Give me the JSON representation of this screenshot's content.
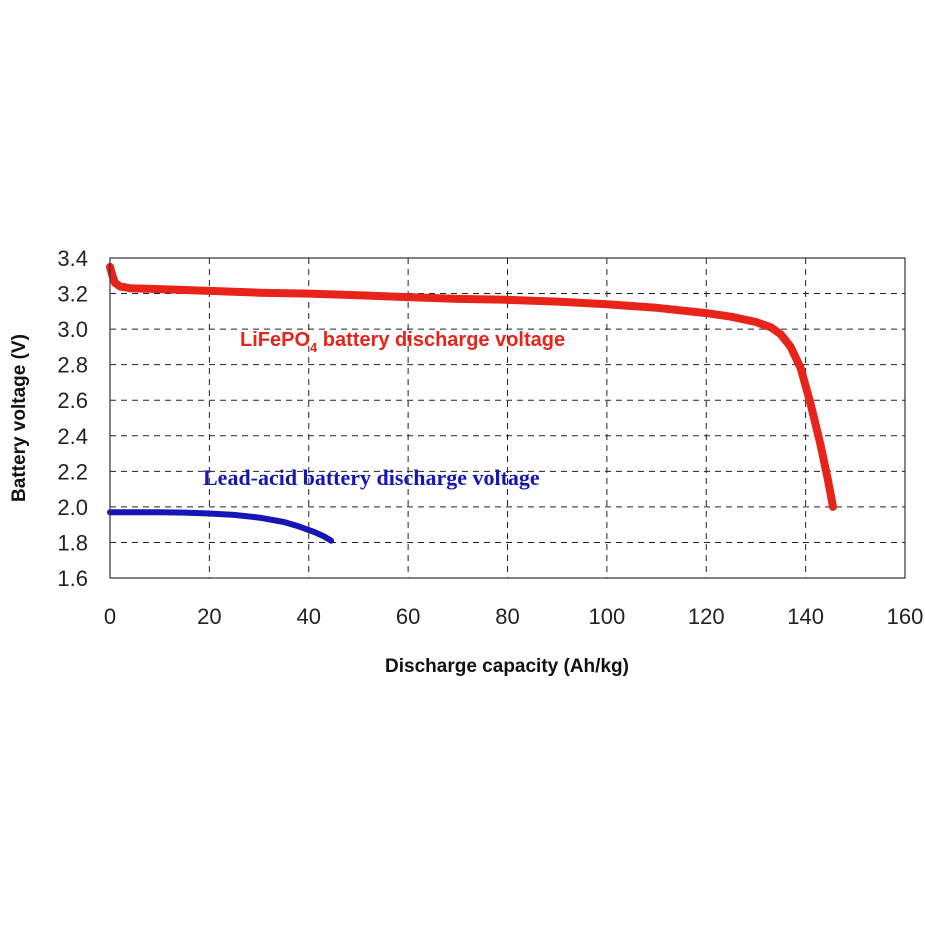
{
  "chart_data": {
    "type": "line",
    "title": "",
    "xlabel": "Discharge capacity (Ah/kg)",
    "ylabel": "Battery voltage (V)",
    "xlim": [
      0,
      160
    ],
    "ylim": [
      1.6,
      3.4
    ],
    "xticks": [
      "0",
      "20",
      "40",
      "60",
      "80",
      "100",
      "120",
      "140",
      "160"
    ],
    "yticks": [
      "1.6",
      "1.8",
      "2.0",
      "2.2",
      "2.4",
      "2.6",
      "2.8",
      "3.0",
      "3.2",
      "3.4"
    ],
    "grid": true,
    "series": [
      {
        "color": "#e8231a",
        "x": [
          0,
          0.5,
          1,
          2,
          4,
          10,
          20,
          30,
          40,
          50,
          60,
          70,
          80,
          90,
          100,
          110,
          120,
          125,
          130,
          133,
          135,
          137,
          139,
          141,
          143,
          144.5,
          145.5
        ],
        "y": [
          3.35,
          3.3,
          3.26,
          3.24,
          3.23,
          3.225,
          3.215,
          3.205,
          3.2,
          3.19,
          3.18,
          3.17,
          3.165,
          3.155,
          3.14,
          3.12,
          3.09,
          3.07,
          3.04,
          3.01,
          2.97,
          2.9,
          2.78,
          2.58,
          2.35,
          2.15,
          2.0
        ]
      },
      {
        "color": "#1616b8",
        "x": [
          0,
          5,
          10,
          15,
          20,
          25,
          30,
          35,
          38,
          41,
          43,
          44.5
        ],
        "y": [
          1.97,
          1.97,
          1.97,
          1.968,
          1.963,
          1.955,
          1.94,
          1.915,
          1.89,
          1.86,
          1.835,
          1.81
        ]
      }
    ],
    "annotations": [
      {
        "text": "LiFePO",
        "subscript": "4",
        "text_after": " battery discharge voltage",
        "color": "#e8231a"
      },
      {
        "text": "Lead-acid battery discharge voltage",
        "color": "#1616b8"
      }
    ]
  }
}
